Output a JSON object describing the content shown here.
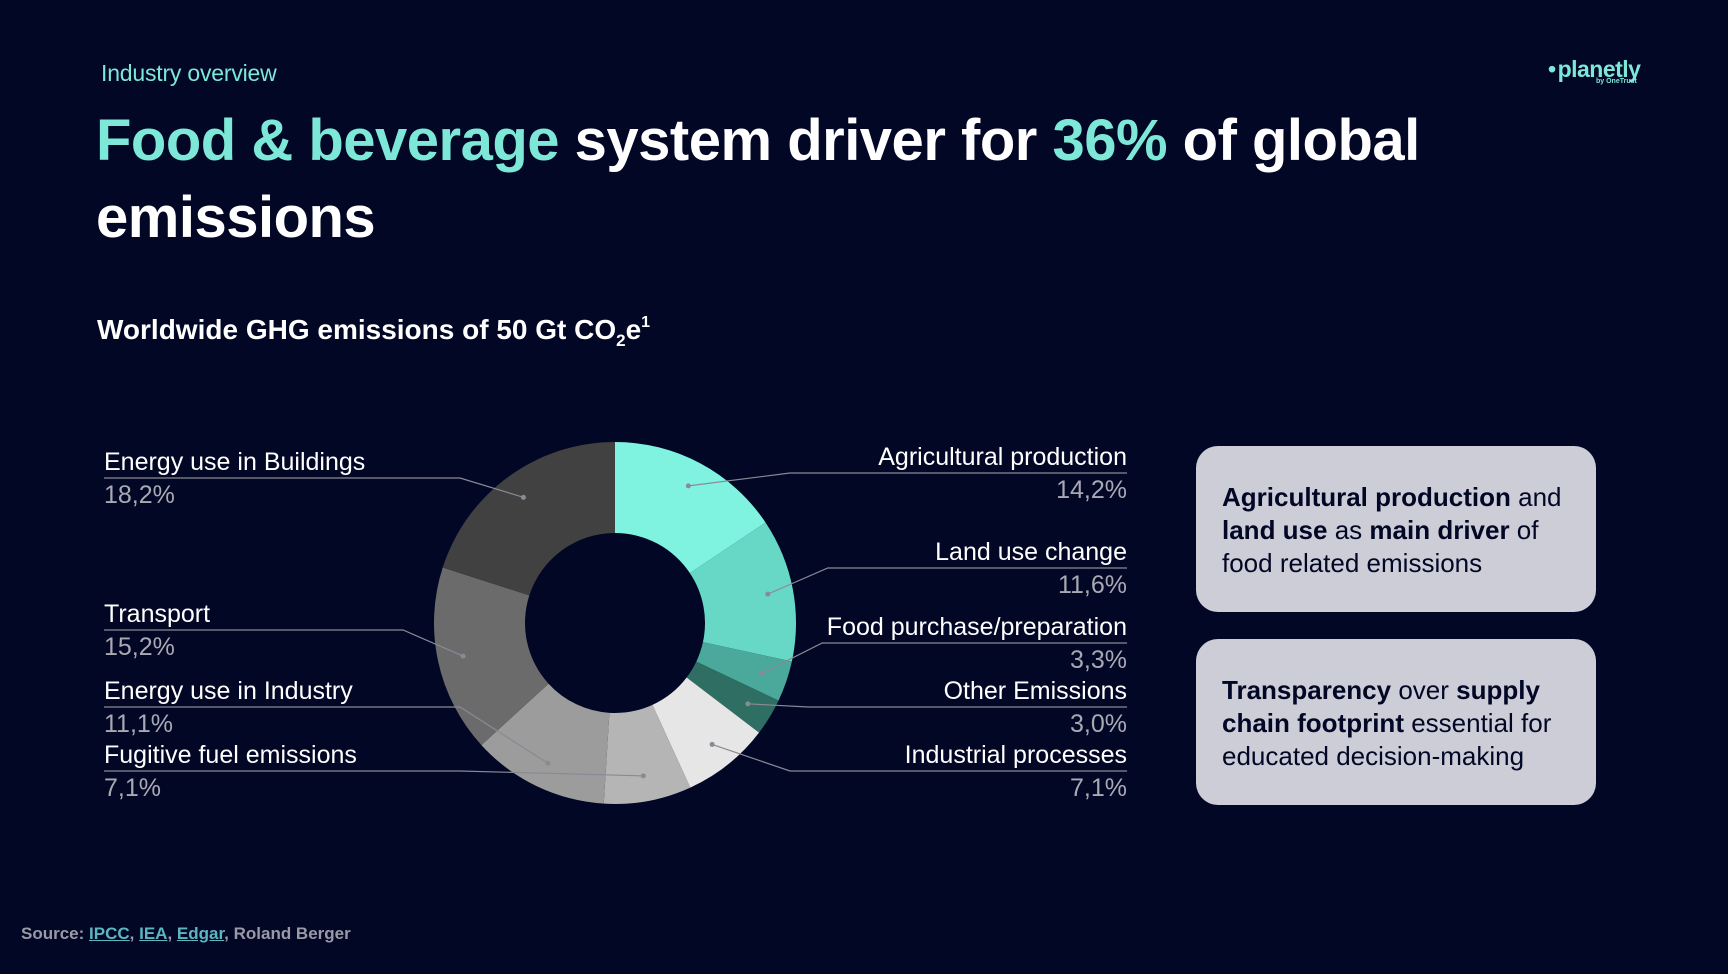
{
  "header": {
    "kicker": "Industry overview",
    "logo_text": "planetly",
    "logo_sub": "by OneTrust",
    "headline": {
      "accent1": "Food & beverage",
      "plain1": " system driver for ",
      "accent2": "36%",
      "plain2": " of global emissions"
    }
  },
  "subtitle": {
    "main": "Worldwide GHG emissions of 50 Gt CO",
    "subscript": "2",
    "suffix": "e",
    "superscript": "1"
  },
  "chart_data": {
    "type": "pie",
    "subtype": "donut",
    "title": "Worldwide GHG emissions of 50 Gt CO2e",
    "categories": [
      "Agricultural production",
      "Land use change",
      "Food purchase/preparation",
      "Other Emissions",
      "Industrial processes",
      "Fugitive fuel emissions",
      "Energy use in Industry",
      "Transport",
      "Energy use in Buildings"
    ],
    "values": [
      14.2,
      11.6,
      3.3,
      3.0,
      7.1,
      7.1,
      11.1,
      15.2,
      18.2
    ],
    "value_labels": [
      "14,2%",
      "11,6%",
      "3,3%",
      "3,0%",
      "7,1%",
      "7,1%",
      "11,1%",
      "15,2%",
      "18,2%"
    ],
    "legend": "none (labels placed beside slices)",
    "colors": {
      "Agricultural production": "#7ff3e0",
      "Land use change": "#68d8c6",
      "Food purchase/preparation": "#4aa99a",
      "Other Emissions": "#2f6e63",
      "Industrial processes": "#e6e6e6",
      "Fugitive fuel emissions": "#b5b5b5",
      "Energy use in Industry": "#9c9c9c",
      "Transport": "#6b6b6b",
      "Energy use in Buildings": "#414141"
    }
  },
  "cards": [
    {
      "parts": [
        {
          "text": "Agricultural production",
          "bold": true
        },
        {
          "text": " and ",
          "bold": false
        },
        {
          "text": "land use",
          "bold": true
        },
        {
          "text": " as ",
          "bold": false
        },
        {
          "text": "main driver",
          "bold": true
        },
        {
          "text": " of food related emissions",
          "bold": false
        }
      ]
    },
    {
      "parts": [
        {
          "text": "Transparency",
          "bold": true
        },
        {
          "text": " over ",
          "bold": false
        },
        {
          "text": "supply chain footprint",
          "bold": true
        },
        {
          "text": " essential for educated decision-making",
          "bold": false
        }
      ]
    }
  ],
  "source": {
    "label": "Source: ",
    "links": [
      "IPCC",
      "IEA",
      "Edgar"
    ],
    "tail": ", Roland Berger"
  },
  "colors": {
    "background": "#020726",
    "accent": "#7ee8d8",
    "card": "#cdcdd7"
  }
}
